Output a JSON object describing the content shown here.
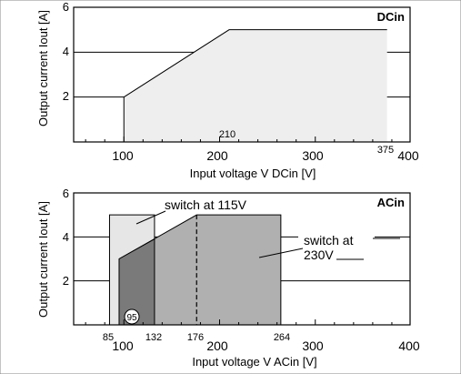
{
  "chart_data": [
    {
      "type": "area",
      "panel": "DCin",
      "xlabel": "Input voltage V DCin [V]",
      "ylabel": "Output current Iout [A]",
      "xlim": [
        0,
        400
      ],
      "ylim": [
        0,
        6
      ],
      "xticks": [
        100,
        200,
        300,
        400
      ],
      "yticks": [
        2,
        4,
        6
      ],
      "xtick_labels": [
        "100",
        "200",
        "300",
        "400"
      ],
      "ytick_labels": [
        "2",
        "4",
        "6"
      ],
      "grid": "horizontal",
      "colors": {
        "region": "#eeeeee",
        "panel_label_bg": "#ffffff"
      },
      "regions": [
        {
          "polygon": [
            [
              100,
              0
            ],
            [
              100,
              2
            ],
            [
              210,
              5
            ],
            [
              375,
              5
            ],
            [
              375,
              0
            ]
          ]
        }
      ],
      "annotations": [
        {
          "text": "210",
          "x": 210
        },
        {
          "text": "375",
          "x": 375
        }
      ]
    },
    {
      "type": "area",
      "panel": "ACin",
      "xlabel": "Input voltage V ACin [V]",
      "ylabel": "Output current Iout [A]",
      "xlim": [
        0,
        400
      ],
      "ylim": [
        0,
        6
      ],
      "xticks": [
        100,
        200,
        300,
        400
      ],
      "yticks": [
        2,
        4,
        6
      ],
      "xtick_labels": [
        "100",
        "200",
        "300",
        "400"
      ],
      "ytick_labels": [
        "2",
        "4",
        "6"
      ],
      "grid": "horizontal",
      "colors": {
        "switch_115": "#e6e6e6",
        "main_region": "#b0b0b0",
        "dark_region": "#7a7a7a"
      },
      "regions": [
        {
          "polygon": [
            [
              85,
              0
            ],
            [
              85,
              5
            ],
            [
              132,
              5
            ],
            [
              132,
              0
            ]
          ],
          "role": "switch_115"
        },
        {
          "polygon": [
            [
              95,
              0
            ],
            [
              95,
              3
            ],
            [
              176,
              5
            ],
            [
              264,
              5
            ],
            [
              264,
              0
            ]
          ],
          "role": "main_region"
        },
        {
          "polygon": [
            [
              95,
              0
            ],
            [
              95,
              3
            ],
            [
              132,
              3.9
            ],
            [
              132,
              0
            ]
          ],
          "role": "dark_region"
        }
      ],
      "dashed_line_x": 176,
      "callouts": [
        {
          "text": "switch at 115V",
          "target": [
            107,
            4.5
          ]
        },
        {
          "text": "switch at",
          "target": [
            200,
            3.2
          ]
        },
        {
          "text": "230V",
          "target": [
            200,
            3.2
          ]
        }
      ],
      "annotations": [
        {
          "text": "85",
          "x": 85
        },
        {
          "text": "95",
          "x": 95
        },
        {
          "text": "132",
          "x": 132
        },
        {
          "text": "176",
          "x": 176
        },
        {
          "text": "264",
          "x": 264
        }
      ]
    }
  ]
}
